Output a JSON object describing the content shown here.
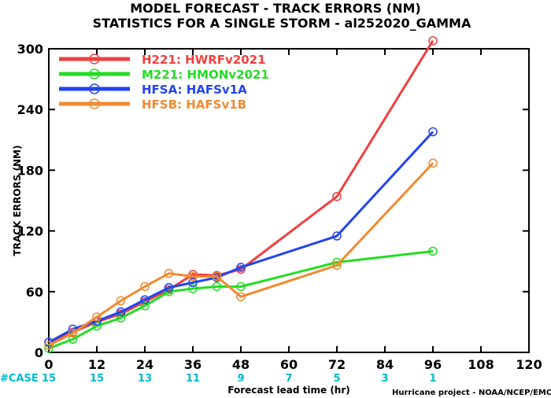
{
  "chart_data": {
    "type": "line",
    "title": "MODEL FORECAST - TRACK ERRORS (NM)",
    "subtitle": "STATISTICS FOR A SINGLE STORM - al252020_GAMMA",
    "xlabel": "Forecast lead time (hr)",
    "ylabel": "TRACK ERRORS (NM)",
    "xlim": [
      0,
      120
    ],
    "ylim": [
      0,
      300
    ],
    "x_ticks": [
      "0",
      "12",
      "24",
      "36",
      "48",
      "60",
      "72",
      "84",
      "96",
      "108",
      "120"
    ],
    "y_ticks": [
      "0",
      "60",
      "120",
      "180",
      "240",
      "300"
    ],
    "case_label": "#CASE",
    "case_color": "#00BBCC",
    "cases": [
      {
        "x": 0,
        "label": "15"
      },
      {
        "x": 12,
        "label": "15"
      },
      {
        "x": 24,
        "label": "13"
      },
      {
        "x": 36,
        "label": "11"
      },
      {
        "x": 48,
        "label": "9"
      },
      {
        "x": 60,
        "label": "7"
      },
      {
        "x": 72,
        "label": "5"
      },
      {
        "x": 84,
        "label": "3"
      },
      {
        "x": 96,
        "label": "1"
      }
    ],
    "credit": "Hurricane project - NOAA/NCEP/EMC",
    "legend_position": "top-left",
    "grid": false,
    "series": [
      {
        "name": "H221: HWRFv2021",
        "color": "#F04040",
        "x": [
          0,
          6,
          12,
          18,
          24,
          30,
          36,
          42,
          48,
          72,
          96
        ],
        "y": [
          10,
          20,
          30,
          38,
          50,
          62,
          77,
          76,
          82,
          154,
          308
        ]
      },
      {
        "name": "M221: HMONv2021",
        "color": "#22DD22",
        "x": [
          0,
          6,
          12,
          18,
          24,
          30,
          36,
          42,
          48,
          72,
          96
        ],
        "y": [
          4,
          13,
          26,
          34,
          46,
          60,
          63,
          65,
          65,
          89,
          100
        ]
      },
      {
        "name": "HFSA: HAFSv1A",
        "color": "#2244EE",
        "x": [
          0,
          6,
          12,
          18,
          24,
          30,
          36,
          42,
          48,
          72,
          96
        ],
        "y": [
          10,
          23,
          31,
          40,
          52,
          64,
          69,
          74,
          84,
          115,
          218
        ]
      },
      {
        "name": "HFSB: HAFSv1B",
        "color": "#F08A30",
        "x": [
          0,
          6,
          12,
          18,
          24,
          30,
          36,
          42,
          48,
          72,
          96
        ],
        "y": [
          7,
          19,
          35,
          51,
          65,
          78,
          75,
          75,
          55,
          86,
          187
        ]
      }
    ]
  }
}
